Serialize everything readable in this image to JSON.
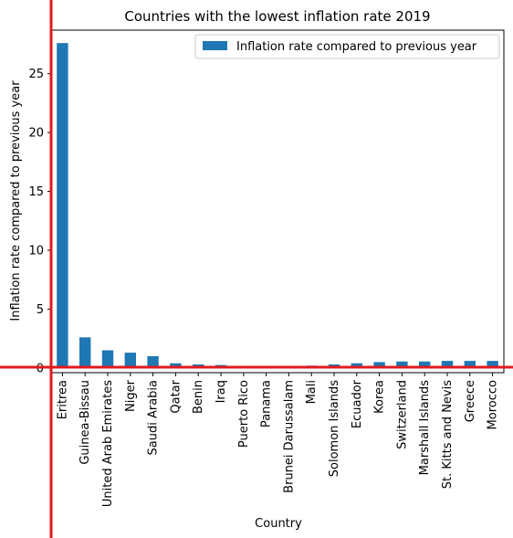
{
  "chart_data": {
    "type": "bar",
    "title": "Countries with the lowest inflation rate 2019",
    "xlabel": "Country",
    "ylabel": "Inflation rate compared to previous year",
    "ylim": [
      -0.4,
      28.7
    ],
    "yticks": [
      0,
      5,
      10,
      15,
      20,
      25
    ],
    "grid": false,
    "legend": {
      "position": "top-right"
    },
    "categories": [
      "Eritrea",
      "Guinea-Bissau",
      "United Arab Emirates",
      "Niger",
      "Saudi Arabia",
      "Qatar",
      "Benin",
      "Iraq",
      "Puerto Rico",
      "Panama",
      "Brunei Darussalam",
      "Mali",
      "Solomon Islands",
      "Ecuador",
      "Korea",
      "Switzerland",
      "Marshall Islands",
      "St. Kitts and Nevis",
      "Greece",
      "Morocco"
    ],
    "series": [
      {
        "name": "Inflation rate compared to previous year",
        "color": "#1f77b4",
        "values": [
          27.6,
          2.6,
          1.5,
          1.3,
          1.0,
          0.4,
          0.3,
          0.25,
          0.15,
          0.0,
          0.1,
          0.2,
          0.3,
          0.4,
          0.5,
          0.55,
          0.55,
          0.6,
          0.6,
          0.6
        ]
      }
    ]
  },
  "colors": {
    "axis_highlight": "#e31a1c"
  }
}
